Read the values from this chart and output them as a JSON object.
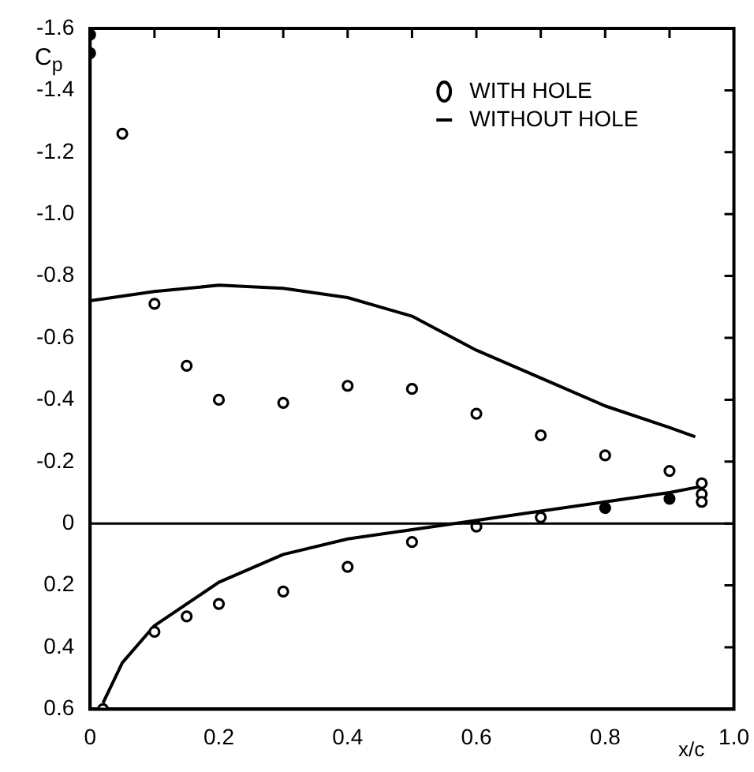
{
  "chart_data": {
    "type": "scatter",
    "xlabel": "x/c",
    "ylabel": "C$_{p}$",
    "xlim": [
      0,
      1
    ],
    "ylim": [
      0.6,
      -1.6
    ],
    "xticks": [
      0,
      {
        "value": 0.1,
        "label": null
      },
      0.2,
      {
        "value": 0.3,
        "label": null
      },
      0.4,
      {
        "value": 0.5,
        "label": null
      },
      0.6,
      {
        "value": 0.7,
        "label": null
      },
      0.8,
      {
        "value": 0.9,
        "label": null
      },
      {
        "value": 1,
        "label": "1.0"
      }
    ],
    "yticks": [
      {
        "value": -1.6,
        "label": "-1.6"
      },
      {
        "value": -1.4,
        "label": "-1.4"
      },
      {
        "value": -1.2,
        "label": "-1.2"
      },
      {
        "value": -1,
        "label": "-1.0"
      },
      {
        "value": -0.8,
        "label": "-0.8"
      },
      {
        "value": -0.6,
        "label": "-0.6"
      },
      {
        "value": -0.4,
        "label": "-0.4"
      },
      {
        "value": -0.2,
        "label": "-0.2"
      },
      0,
      0.2,
      0.4,
      0.6
    ],
    "legend": "top right",
    "grid": false,
    "ref_lines": [
      {
        "axis": "y",
        "value": 0,
        "color": "#000000"
      }
    ],
    "series": [
      {
        "name": "WITH HOLE",
        "marker": "circle",
        "color": "#000000",
        "x": [
          0.05,
          0.1,
          0.15,
          0.2,
          0.3,
          0.4,
          0.5,
          0.6,
          0.7,
          0.8,
          0.9,
          0.95,
          0.95,
          0.95,
          0.02,
          0.1,
          0.15,
          0.2,
          0.3,
          0.4,
          0.5,
          0.6,
          0.7
        ],
        "values": [
          -1.26,
          -0.71,
          -0.51,
          -0.4,
          -0.39,
          -0.445,
          -0.435,
          -0.355,
          -0.285,
          -0.22,
          -0.17,
          -0.13,
          -0.095,
          -0.07,
          0.6,
          0.35,
          0.3,
          0.26,
          0.22,
          0.14,
          0.06,
          0.01,
          -0.02
        ]
      },
      {
        "marker": "circle",
        "color": "#000000",
        "x": [
          0,
          0,
          0.8,
          0.9
        ],
        "values": [
          -1.58,
          -1.52,
          -0.05,
          -0.08
        ]
      },
      {
        "name": "WITHOUT HOLE",
        "type": "line",
        "marker": "none",
        "color": "#000000",
        "x": [
          0,
          0.1,
          0.2,
          0.3,
          0.4,
          0.5,
          0.6,
          0.7,
          0.8,
          0.9,
          0.94
        ],
        "values": [
          -0.72,
          -0.75,
          -0.77,
          -0.76,
          -0.73,
          -0.67,
          -0.56,
          -0.47,
          -0.38,
          -0.31,
          -0.28
        ]
      },
      {
        "type": "line",
        "marker": "none",
        "color": "#000000",
        "x": [
          0.02,
          0.05,
          0.1,
          0.2,
          0.3,
          0.4,
          0.5,
          0.6,
          0.7,
          0.8,
          0.9,
          0.95
        ],
        "values": [
          0.58,
          0.45,
          0.33,
          0.19,
          0.1,
          0.05,
          0.02,
          -0.01,
          -0.04,
          -0.07,
          -0.1,
          -0.12
        ]
      }
    ]
  }
}
